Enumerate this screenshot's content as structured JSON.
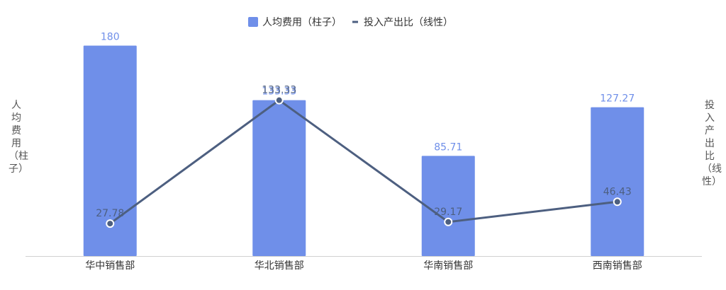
{
  "chart_data": {
    "type": "bar",
    "categories": [
      "华中销售部",
      "华北销售部",
      "华南销售部",
      "西南销售部"
    ],
    "series": [
      {
        "name": "人均费用（柱子）",
        "type": "bar",
        "axis": "left",
        "color": "#6f8fe9",
        "values": [
          180,
          133.33,
          85.71,
          127.27
        ]
      },
      {
        "name": "投入产出比（线性）",
        "type": "line",
        "axis": "right",
        "color": "#4d5f80",
        "values": [
          27.78,
          133.33,
          29.17,
          46.43
        ]
      }
    ],
    "ylabel": "人均费用（柱子）",
    "y2label": "投入产出比（线性）",
    "ylim": [
      0,
      190
    ],
    "y2lim": [
      0,
      190
    ],
    "legend_position": "top-center",
    "grid": false
  }
}
